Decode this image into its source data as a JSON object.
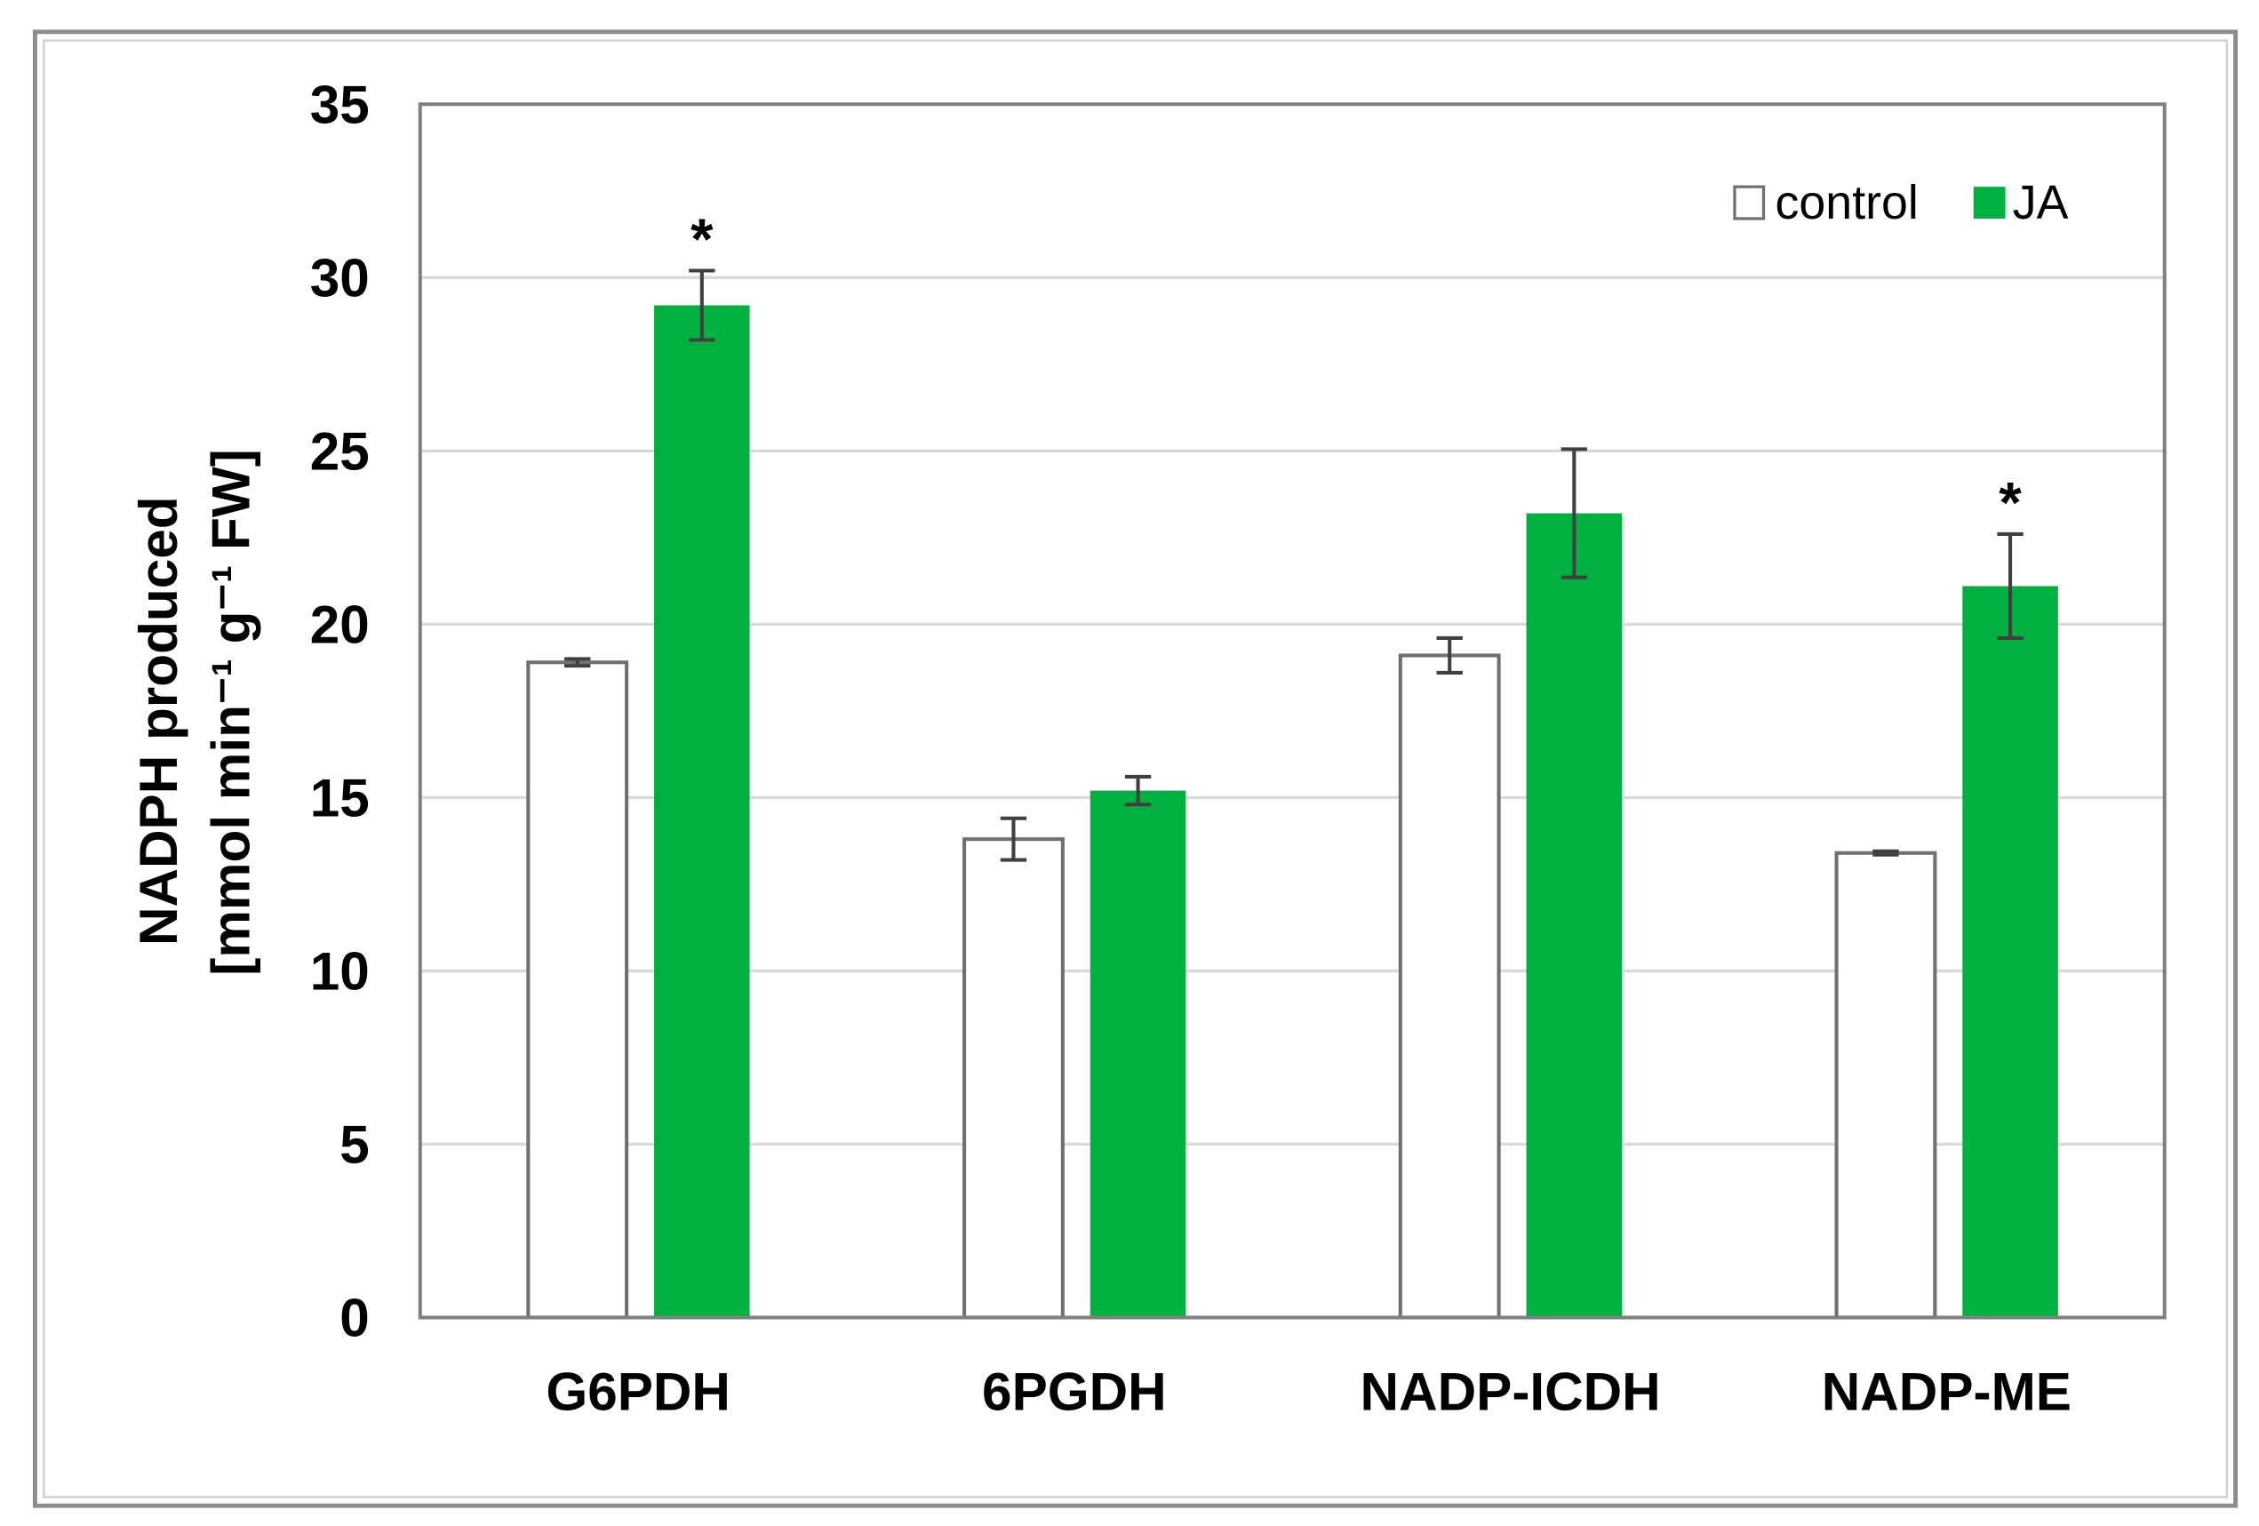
{
  "chart_data": {
    "type": "bar",
    "categories": [
      "G6PDH",
      "6PGDH",
      "NADP-ICDH",
      "NADP-ME"
    ],
    "series": [
      {
        "name": "control",
        "color": "#ffffff",
        "values": [
          18.9,
          13.8,
          19.1,
          13.4
        ],
        "errors": [
          0.1,
          0.6,
          0.5,
          0.05
        ],
        "significant": [
          false,
          false,
          false,
          false
        ]
      },
      {
        "name": "JA",
        "color": "#00b140",
        "values": [
          29.2,
          15.2,
          23.2,
          21.1
        ],
        "errors": [
          1.0,
          0.4,
          1.85,
          1.5
        ],
        "significant": [
          true,
          false,
          false,
          true
        ]
      }
    ],
    "significance_marker": "*",
    "ylabel_line1": "NADPH produced",
    "ylabel_line2": "[mmol min⁻¹ g⁻¹ FW]",
    "xlabel": "",
    "ylim": [
      0,
      35
    ],
    "yticks": [
      0,
      5,
      10,
      15,
      20,
      25,
      30,
      35
    ],
    "grid": true,
    "legend_position": "top-right"
  }
}
